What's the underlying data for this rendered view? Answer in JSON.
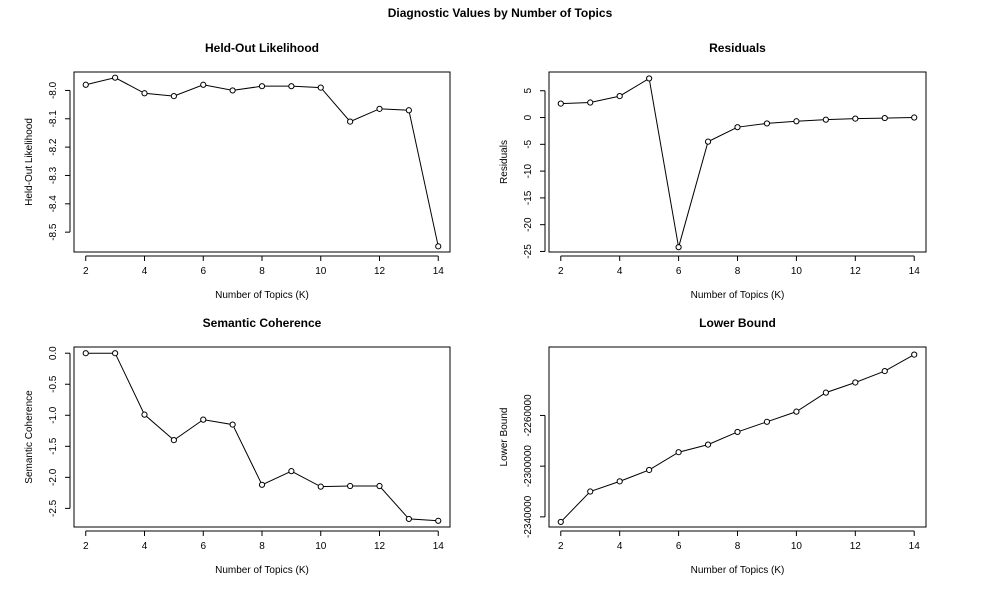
{
  "figure_title": "Diagnostic Values by Number of Topics",
  "chart_data": [
    {
      "type": "line",
      "title": "Held-Out Likelihood",
      "xlabel": "Number of Topics (K)",
      "ylabel": "Held-Out Likelihood",
      "x": [
        2,
        3,
        4,
        5,
        6,
        7,
        8,
        9,
        10,
        11,
        12,
        13,
        14
      ],
      "y": [
        -7.98,
        -7.955,
        -8.01,
        -8.02,
        -7.98,
        -8.0,
        -7.985,
        -7.985,
        -7.99,
        -8.11,
        -8.065,
        -8.07,
        -8.55
      ],
      "xticks": [
        2,
        4,
        6,
        8,
        10,
        12,
        14
      ],
      "xtick_labels": [
        "2",
        "4",
        "6",
        "8",
        "10",
        "12",
        "14"
      ],
      "yticks": [
        -8.0,
        -8.1,
        -8.2,
        -8.3,
        -8.4,
        -8.5
      ],
      "ytick_labels": [
        "-8.0",
        "-8.1",
        "-8.2",
        "-8.3",
        "-8.4",
        "-8.5"
      ],
      "xlim": [
        1.6,
        14.4
      ],
      "ylim": [
        -8.57,
        -7.935
      ],
      "grid": false,
      "marker": "open-circle"
    },
    {
      "type": "line",
      "title": "Residuals",
      "xlabel": "Number of Topics (K)",
      "ylabel": "Residuals",
      "x": [
        2,
        3,
        4,
        5,
        6,
        7,
        8,
        9,
        10,
        11,
        12,
        13,
        14
      ],
      "y": [
        2.6,
        2.8,
        4.0,
        7.3,
        -24.2,
        -4.5,
        -1.8,
        -1.1,
        -0.7,
        -0.4,
        -0.2,
        -0.1,
        0.0
      ],
      "xticks": [
        2,
        4,
        6,
        8,
        10,
        12,
        14
      ],
      "xtick_labels": [
        "2",
        "4",
        "6",
        "8",
        "10",
        "12",
        "14"
      ],
      "yticks": [
        5,
        0,
        -5,
        -10,
        -15,
        -20,
        -25
      ],
      "ytick_labels": [
        "5",
        "0",
        "-5",
        "-10",
        "-15",
        "-20",
        "-25"
      ],
      "xlim": [
        1.6,
        14.4
      ],
      "ylim": [
        -25.1,
        8.5
      ],
      "grid": false,
      "marker": "open-circle"
    },
    {
      "type": "line",
      "title": "Semantic Coherence",
      "xlabel": "Number of Topics (K)",
      "ylabel": "Semantic Coherence",
      "x": [
        2,
        3,
        4,
        5,
        6,
        7,
        8,
        9,
        10,
        11,
        12,
        13,
        14
      ],
      "y": [
        0.0,
        0.0,
        -0.99,
        -1.4,
        -1.07,
        -1.15,
        -2.12,
        -1.9,
        -2.15,
        -2.14,
        -2.14,
        -2.67,
        -2.7
      ],
      "xticks": [
        2,
        4,
        6,
        8,
        10,
        12,
        14
      ],
      "xtick_labels": [
        "2",
        "4",
        "6",
        "8",
        "10",
        "12",
        "14"
      ],
      "yticks": [
        0.0,
        -0.5,
        -1.0,
        -1.5,
        -2.0,
        -2.5
      ],
      "ytick_labels": [
        "0.0",
        "-0.5",
        "-1.0",
        "-1.5",
        "-2.0",
        "-2.5"
      ],
      "xlim": [
        1.6,
        14.4
      ],
      "ylim": [
        -2.8,
        0.1
      ],
      "grid": false,
      "marker": "open-circle"
    },
    {
      "type": "line",
      "title": "Lower Bound",
      "xlabel": "Number of Topics (K)",
      "ylabel": "Lower Bound",
      "x": [
        2,
        3,
        4,
        5,
        6,
        7,
        8,
        9,
        10,
        11,
        12,
        13,
        14
      ],
      "y": [
        -2344000,
        -2320000,
        -2312000,
        -2303000,
        -2289000,
        -2283000,
        -2273000,
        -2265000,
        -2257000,
        -2242000,
        -2234000,
        -2225000,
        -2212000
      ],
      "xticks": [
        2,
        4,
        6,
        8,
        10,
        12,
        14
      ],
      "xtick_labels": [
        "2",
        "4",
        "6",
        "8",
        "10",
        "12",
        "14"
      ],
      "yticks": [
        -2260000,
        -2300000,
        -2340000
      ],
      "ytick_labels": [
        "-2260000",
        "-2300000",
        "-2340000"
      ],
      "xlim": [
        1.6,
        14.4
      ],
      "ylim": [
        -2348000,
        -2206000
      ],
      "grid": false,
      "marker": "open-circle"
    }
  ]
}
